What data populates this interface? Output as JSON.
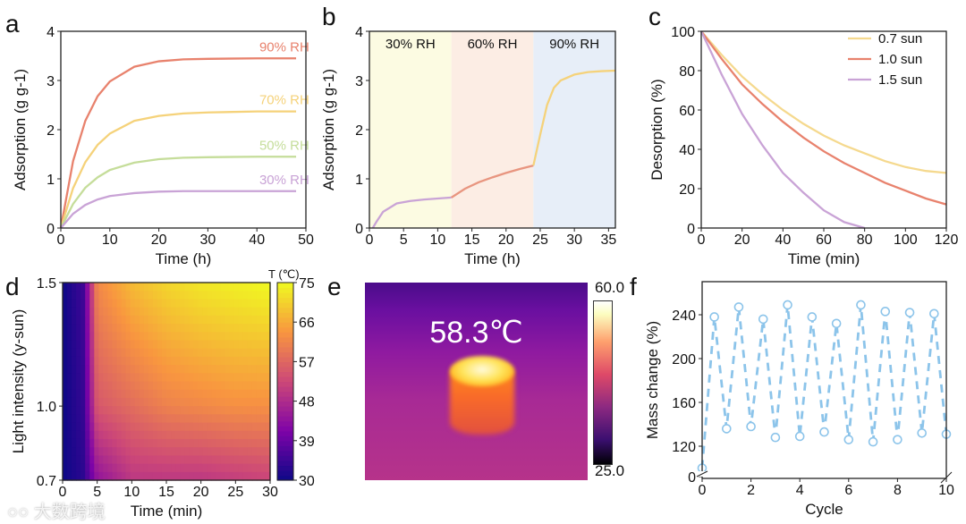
{
  "chart_data": [
    {
      "panel": "a",
      "type": "line",
      "xlabel": "Time (h)",
      "ylabel": "Adsorption (g g-1)",
      "xlim": [
        0,
        50
      ],
      "ylim": [
        0,
        4
      ],
      "xticks": [
        0,
        10,
        20,
        30,
        40,
        50
      ],
      "yticks": [
        0,
        1,
        2,
        3,
        4
      ],
      "x": [
        0,
        2.5,
        5,
        7.5,
        10,
        15,
        20,
        25,
        30,
        40,
        48
      ],
      "series": [
        {
          "name": "90% RH",
          "color": "#e8826d",
          "values": [
            0,
            1.36,
            2.18,
            2.68,
            2.98,
            3.28,
            3.39,
            3.43,
            3.44,
            3.45,
            3.45
          ]
        },
        {
          "name": "70% RH",
          "color": "#f5d27a",
          "values": [
            0,
            0.81,
            1.34,
            1.69,
            1.92,
            2.18,
            2.28,
            2.33,
            2.35,
            2.37,
            2.37
          ]
        },
        {
          "name": "50% RH",
          "color": "#c5dd9a",
          "values": [
            0,
            0.49,
            0.82,
            1.03,
            1.18,
            1.33,
            1.4,
            1.43,
            1.44,
            1.45,
            1.45
          ]
        },
        {
          "name": "30% RH",
          "color": "#c9a3d6",
          "values": [
            0,
            0.29,
            0.47,
            0.58,
            0.65,
            0.71,
            0.74,
            0.75,
            0.75,
            0.75,
            0.75
          ]
        }
      ]
    },
    {
      "panel": "b",
      "type": "line",
      "xlabel": "Time (h)",
      "ylabel": "Adsorption (g g-1)",
      "xlim": [
        0,
        36
      ],
      "ylim": [
        0,
        4
      ],
      "xticks": [
        0,
        5,
        10,
        15,
        20,
        25,
        30,
        35
      ],
      "yticks": [
        0,
        1,
        2,
        3,
        4
      ],
      "bands": [
        {
          "label": "30% RH",
          "from": 0,
          "to": 12,
          "color": "#fcfbe2",
          "line": "#c9a3d6"
        },
        {
          "label": "60% RH",
          "from": 12,
          "to": 24,
          "color": "#fcede4",
          "line": "#e8957f"
        },
        {
          "label": "90% RH",
          "from": 24,
          "to": 36,
          "color": "#e7eef8",
          "line": "#f5d27a"
        }
      ],
      "x": [
        0.5,
        1,
        2,
        4,
        6,
        8,
        10,
        12,
        14,
        16,
        18,
        20,
        22,
        24,
        25,
        26,
        27,
        28,
        30,
        32,
        34,
        36
      ],
      "values": [
        0,
        0.12,
        0.33,
        0.5,
        0.55,
        0.58,
        0.6,
        0.62,
        0.8,
        0.93,
        1.03,
        1.12,
        1.2,
        1.27,
        1.9,
        2.5,
        2.85,
        3.0,
        3.12,
        3.17,
        3.19,
        3.2
      ]
    },
    {
      "panel": "c",
      "type": "line",
      "xlabel": "Time (min)",
      "ylabel": "Desorption (%)",
      "xlim": [
        0,
        120
      ],
      "ylim": [
        0,
        100
      ],
      "xticks": [
        0,
        20,
        40,
        60,
        80,
        100,
        120
      ],
      "yticks": [
        0,
        20,
        40,
        60,
        80,
        100
      ],
      "legend": "top-right",
      "series": [
        {
          "name": "0.7 sun",
          "color": "#f5d98e",
          "x": [
            0,
            10,
            20,
            30,
            40,
            50,
            60,
            70,
            80,
            90,
            100,
            110,
            120
          ],
          "values": [
            100,
            88,
            77,
            68,
            60,
            53,
            47,
            42,
            38,
            34,
            31,
            29,
            28
          ]
        },
        {
          "name": "1.0 sun",
          "color": "#e8826d",
          "x": [
            0,
            10,
            20,
            30,
            40,
            50,
            60,
            70,
            80,
            90,
            100,
            110,
            120
          ],
          "values": [
            100,
            86,
            73,
            63,
            54,
            46,
            39,
            33,
            28,
            23,
            19,
            15,
            12
          ]
        },
        {
          "name": "1.5 sun",
          "color": "#c9a3d6",
          "x": [
            0,
            10,
            20,
            30,
            40,
            50,
            60,
            70,
            80
          ],
          "values": [
            100,
            78,
            58,
            42,
            28,
            18,
            9,
            3,
            0
          ]
        }
      ]
    },
    {
      "panel": "d",
      "type": "heatmap",
      "xlabel": "Time (min)",
      "ylabel": "Light intensity (y-sun)",
      "colorbar_title": "T (℃)",
      "xlim": [
        0,
        30
      ],
      "ylim": [
        0.7,
        1.5
      ],
      "xticks": [
        0,
        5,
        10,
        15,
        20,
        25,
        30
      ],
      "yticks": [
        "0.7",
        "1.0",
        "1.5"
      ],
      "colorbar_ticks": [
        30,
        39,
        48,
        57,
        66,
        75
      ],
      "x": [
        0,
        3,
        5,
        10,
        15,
        20,
        25,
        30
      ],
      "y": [
        0.7,
        1.0,
        1.5
      ],
      "z": [
        [
          30,
          33,
          44,
          50,
          50,
          50,
          51,
          52
        ],
        [
          30,
          34,
          55,
          58,
          61,
          62,
          63,
          63
        ],
        [
          30,
          35,
          62,
          68,
          71,
          73,
          74,
          75
        ]
      ]
    },
    {
      "panel": "f",
      "type": "line",
      "xlabel": "Cycle",
      "ylabel": "Mass change (%)",
      "xlim": [
        0,
        10
      ],
      "xticks": [
        0,
        2,
        4,
        6,
        8,
        10
      ],
      "yticks": [
        0,
        120,
        160,
        200,
        240
      ],
      "axis_break": true,
      "color": "#8cc4ea",
      "x": [
        0,
        0.5,
        1,
        1.5,
        2,
        2.5,
        3,
        3.5,
        4,
        4.5,
        5,
        5.5,
        6,
        6.5,
        7,
        7.5,
        8,
        8.5,
        9,
        9.5,
        10
      ],
      "values": [
        100,
        238,
        136,
        247,
        138,
        236,
        128,
        249,
        129,
        238,
        133,
        232,
        126,
        249,
        124,
        243,
        126,
        242,
        132,
        241,
        131
      ]
    }
  ],
  "panel_labels": [
    "a",
    "b",
    "c",
    "d",
    "e",
    "f"
  ],
  "thermal_image": {
    "temperature_label": "58.3℃",
    "colorbar_max": "60.0",
    "colorbar_min": "25.0"
  },
  "watermark": "大数跨境"
}
